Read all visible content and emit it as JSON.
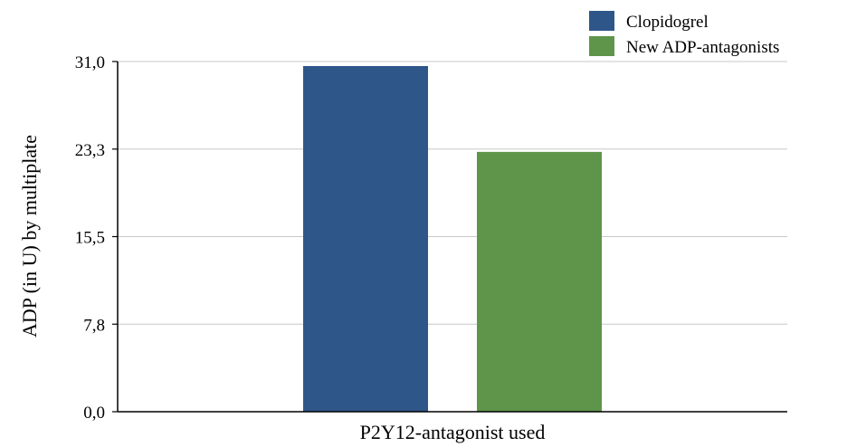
{
  "chart_data": {
    "type": "bar",
    "categories": [
      "P2Y12-antagonist used"
    ],
    "series": [
      {
        "name": "Clopidogrel",
        "values": [
          30.6
        ],
        "color": "#2f5689"
      },
      {
        "name": "New ADP-antagonists",
        "values": [
          23.0
        ],
        "color": "#5e954a"
      }
    ],
    "xlabel": "P2Y12-antagonist used",
    "ylabel": "ADP (in U)  by multiplate",
    "ylim": [
      0,
      31
    ],
    "yticks": [
      "0,0",
      "7,8",
      "15,5",
      "23,3",
      "31,0"
    ],
    "ytick_values": [
      0,
      7.75,
      15.5,
      23.25,
      31
    ],
    "grid": true,
    "legend_position": "top-right"
  }
}
